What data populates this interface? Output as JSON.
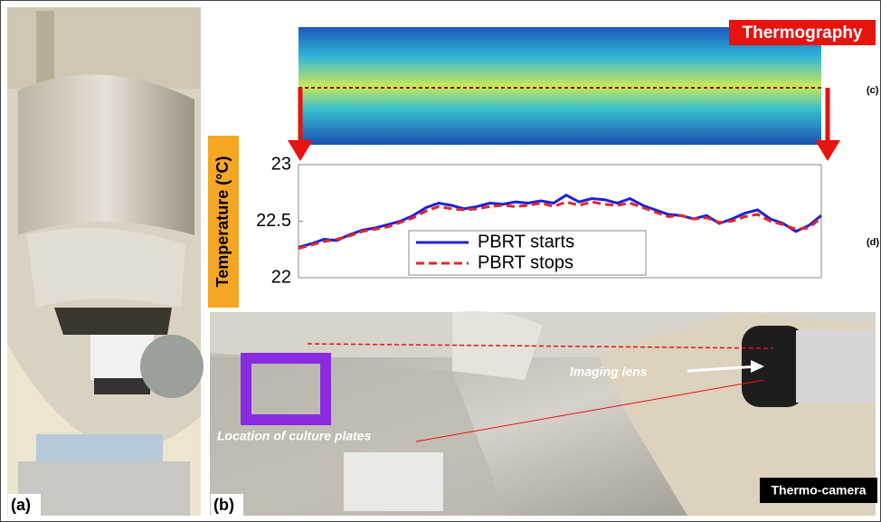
{
  "chart_data": {
    "type": "line",
    "y_label": "Temperature (°C)",
    "ylim": [
      22,
      23
    ],
    "yticks": [
      22,
      22.5,
      23
    ],
    "series": [
      {
        "name": "PBRT starts",
        "color": "#1f1fd6",
        "dash": false,
        "values": [
          22.27,
          22.3,
          22.34,
          22.33,
          22.38,
          22.42,
          22.44,
          22.47,
          22.5,
          22.55,
          22.62,
          22.66,
          22.64,
          22.61,
          22.63,
          22.66,
          22.65,
          22.67,
          22.66,
          22.68,
          22.66,
          22.73,
          22.67,
          22.7,
          22.69,
          22.66,
          22.7,
          22.64,
          22.6,
          22.56,
          22.55,
          22.52,
          22.55,
          22.48,
          22.52,
          22.57,
          22.6,
          22.52,
          22.48,
          22.41,
          22.46,
          22.55
        ]
      },
      {
        "name": "PBRT stops",
        "color": "#e0282a",
        "dash": true,
        "values": [
          22.26,
          22.29,
          22.32,
          22.34,
          22.37,
          22.41,
          22.43,
          22.45,
          22.49,
          22.53,
          22.59,
          22.63,
          22.61,
          22.6,
          22.61,
          22.63,
          22.64,
          22.63,
          22.64,
          22.66,
          22.63,
          22.67,
          22.64,
          22.67,
          22.65,
          22.64,
          22.66,
          22.62,
          22.58,
          22.54,
          22.55,
          22.52,
          22.53,
          22.49,
          22.5,
          22.54,
          22.56,
          22.5,
          22.47,
          22.43,
          22.44,
          22.53
        ]
      }
    ],
    "legend": "bottom-center"
  },
  "labels": {
    "thermography": "Thermography",
    "c": "(c)",
    "d": "(d)",
    "a": "(a)",
    "b": "(b)",
    "imaging_lens": "Imaging lens",
    "thermo_camera": "Thermo-camera",
    "culture_plates": "Location of culture plates"
  }
}
